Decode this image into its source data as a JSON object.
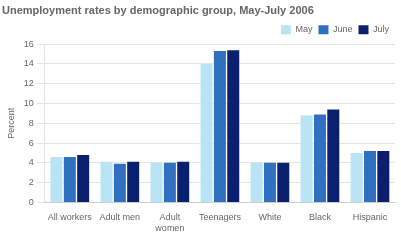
{
  "chart_data": {
    "type": "bar",
    "title": "Unemployment rates by demographic group, May-July 2006",
    "y_label": "Percent",
    "categories": [
      "All workers",
      "Adult men",
      "Adult\nwomen",
      "Teenagers",
      "White",
      "Black",
      "Hispanic"
    ],
    "series": [
      {
        "name": "May",
        "color": "#b8e4f5",
        "values": [
          4.6,
          4.1,
          4.0,
          14.0,
          4.0,
          8.8,
          5.0
        ]
      },
      {
        "name": "June",
        "color": "#3070c0",
        "values": [
          4.6,
          3.9,
          4.0,
          15.3,
          4.0,
          8.9,
          5.2
        ]
      },
      {
        "name": "July",
        "color": "#0a1f6e",
        "values": [
          4.8,
          4.1,
          4.1,
          15.4,
          4.0,
          9.4,
          5.2
        ]
      }
    ],
    "ylim": [
      0,
      16
    ],
    "yticks": [
      0,
      2,
      4,
      6,
      8,
      10,
      12,
      14,
      16
    ],
    "grid": true,
    "legend": "upper right"
  }
}
